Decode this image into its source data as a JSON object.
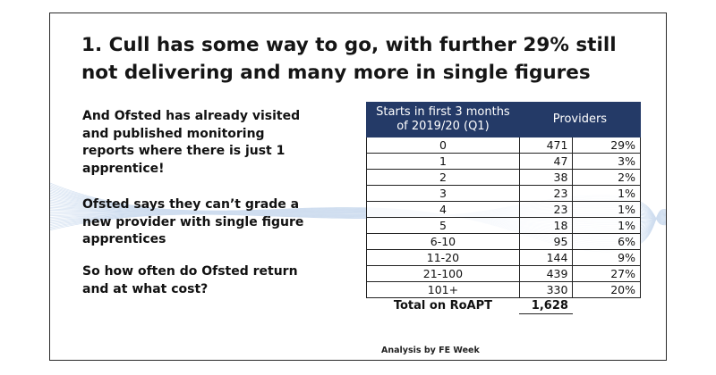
{
  "title": "1. Cull has some way to go, with further 29% still not delivering and many more in single figures",
  "paragraphs": [
    "And Ofsted has already visited and published monitoring reports where there is just 1 apprentice!",
    "Ofsted says they can’t grade a new provider with single figure apprentices",
    "So how often do Ofsted return and at what cost?"
  ],
  "table": {
    "header_col1": "Starts in first 3 months of 2019/20 (Q1)",
    "header_col2": "Providers",
    "rows": [
      {
        "starts": "0",
        "providers": "471",
        "percent": "29%"
      },
      {
        "starts": "1",
        "providers": "47",
        "percent": "3%"
      },
      {
        "starts": "2",
        "providers": "38",
        "percent": "2%"
      },
      {
        "starts": "3",
        "providers": "23",
        "percent": "1%"
      },
      {
        "starts": "4",
        "providers": "23",
        "percent": "1%"
      },
      {
        "starts": "5",
        "providers": "18",
        "percent": "1%"
      },
      {
        "starts": "6-10",
        "providers": "95",
        "percent": "6%"
      },
      {
        "starts": "11-20",
        "providers": "144",
        "percent": "9%"
      },
      {
        "starts": "21-100",
        "providers": "439",
        "percent": "27%"
      },
      {
        "starts": "101+",
        "providers": "330",
        "percent": "20%"
      }
    ],
    "total_label": "Total on RoAPT",
    "total_value": "1,628"
  },
  "source_note": "Analysis by FE Week",
  "colors": {
    "header_bg": "#243a67",
    "wave": "#a9c3e3"
  }
}
